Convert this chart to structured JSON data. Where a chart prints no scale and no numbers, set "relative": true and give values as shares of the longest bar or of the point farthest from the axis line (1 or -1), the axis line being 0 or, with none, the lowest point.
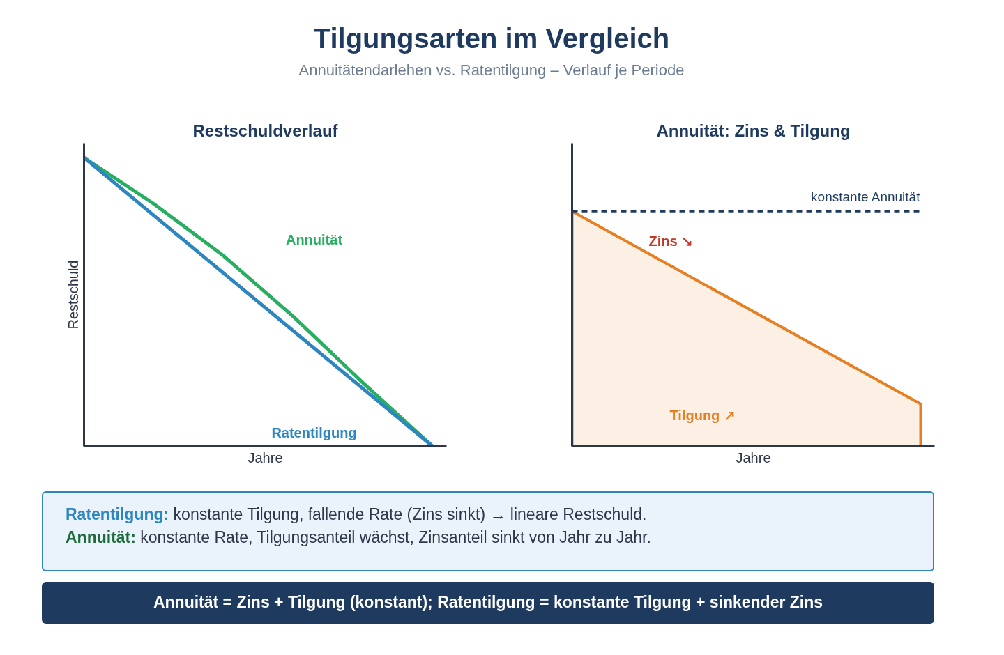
{
  "chart_data": [
    {
      "type": "other",
      "title": "Tilgungsarten im Vergleich",
      "subtitle": "Annuitätendarlehen vs. Ratentilgung – Verlauf je Periode"
    },
    {
      "type": "line",
      "title": "Restschuldverlauf",
      "xlabel": "Jahre",
      "ylabel": "Restschuld",
      "relative": true,
      "categories": [
        null,
        null,
        null,
        null,
        null,
        null
      ],
      "series": [
        {
          "name": "Annuität",
          "color": "#27ae60",
          "values": [
            1,
            0.84,
            0.66,
            0.45,
            0.22,
            0
          ]
        },
        {
          "name": "Ratentilgung",
          "color": "#2e86c1",
          "values": [
            1,
            0.8,
            0.6,
            0.4,
            0.2,
            0
          ]
        }
      ]
    },
    {
      "type": "area",
      "title": "Annuität: Zins & Tilgung",
      "xlabel": "Jahre",
      "relative": true,
      "categories": [
        null,
        null
      ],
      "series": [
        {
          "color": "#e67e22",
          "values": [
            1,
            0.18
          ]
        }
      ],
      "ref_lines": [
        {
          "axis": "y",
          "value": 1,
          "label": "konstante Annuität",
          "color": "#1f3a5f",
          "line_style": "dashed"
        }
      ],
      "annotations": [
        "Zins ↘",
        "Tilgung ↗"
      ]
    },
    {
      "type": "other",
      "annotations": [
        "Ratentilgung: konstante Tilgung, fallende Rate (Zins sinkt) → lineare Restschuld.",
        "Annuität: konstante Rate, Tilgungsanteil wächst, Zinsanteil sinkt von Jahr zu Jahr.",
        "Annuität = Zins + Tilgung (konstant); Ratentilgung = konstante Tilgung + sinkender Zins"
      ]
    }
  ]
}
